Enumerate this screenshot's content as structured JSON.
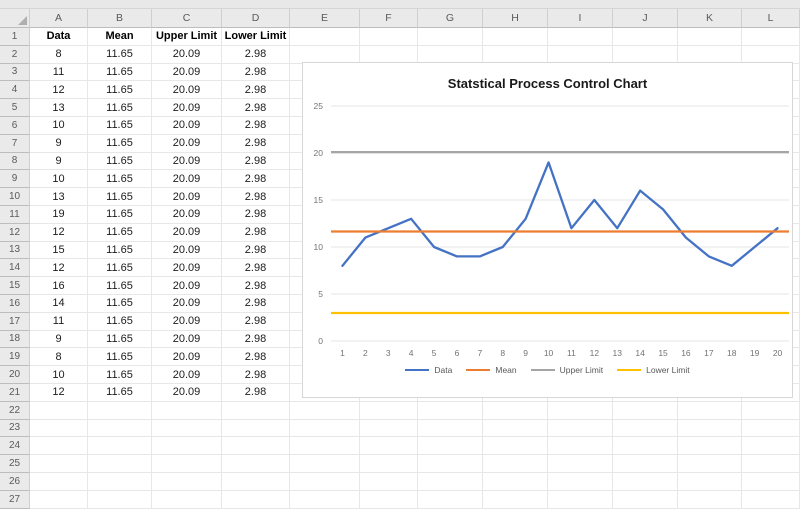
{
  "sheet": {
    "column_headers": [
      "A",
      "B",
      "C",
      "D",
      "E",
      "F",
      "G",
      "H",
      "I",
      "J",
      "K",
      "L"
    ],
    "visible_rows": 27,
    "table": {
      "headers": [
        "Data",
        "Mean",
        "Upper Limit",
        "Lower Limit"
      ],
      "rows": [
        [
          "8",
          "11.65",
          "20.09",
          "2.98"
        ],
        [
          "11",
          "11.65",
          "20.09",
          "2.98"
        ],
        [
          "12",
          "11.65",
          "20.09",
          "2.98"
        ],
        [
          "13",
          "11.65",
          "20.09",
          "2.98"
        ],
        [
          "10",
          "11.65",
          "20.09",
          "2.98"
        ],
        [
          "9",
          "11.65",
          "20.09",
          "2.98"
        ],
        [
          "9",
          "11.65",
          "20.09",
          "2.98"
        ],
        [
          "10",
          "11.65",
          "20.09",
          "2.98"
        ],
        [
          "13",
          "11.65",
          "20.09",
          "2.98"
        ],
        [
          "19",
          "11.65",
          "20.09",
          "2.98"
        ],
        [
          "12",
          "11.65",
          "20.09",
          "2.98"
        ],
        [
          "15",
          "11.65",
          "20.09",
          "2.98"
        ],
        [
          "12",
          "11.65",
          "20.09",
          "2.98"
        ],
        [
          "16",
          "11.65",
          "20.09",
          "2.98"
        ],
        [
          "14",
          "11.65",
          "20.09",
          "2.98"
        ],
        [
          "11",
          "11.65",
          "20.09",
          "2.98"
        ],
        [
          "9",
          "11.65",
          "20.09",
          "2.98"
        ],
        [
          "8",
          "11.65",
          "20.09",
          "2.98"
        ],
        [
          "10",
          "11.65",
          "20.09",
          "2.98"
        ],
        [
          "12",
          "11.65",
          "20.09",
          "2.98"
        ]
      ]
    }
  },
  "chart_data": {
    "type": "line",
    "title": "Statstical Process Control Chart",
    "x": [
      1,
      2,
      3,
      4,
      5,
      6,
      7,
      8,
      9,
      10,
      11,
      12,
      13,
      14,
      15,
      16,
      17,
      18,
      19,
      20
    ],
    "series": [
      {
        "name": "Data",
        "color": "#4472C4",
        "values": [
          8,
          11,
          12,
          13,
          10,
          9,
          9,
          10,
          13,
          19,
          12,
          15,
          12,
          16,
          14,
          11,
          9,
          8,
          10,
          12
        ]
      },
      {
        "name": "Mean",
        "color": "#ED7D31",
        "constant": 11.65
      },
      {
        "name": "Upper Limit",
        "color": "#A5A5A5",
        "constant": 20.09
      },
      {
        "name": "Lower Limit",
        "color": "#FFC000",
        "constant": 2.98
      }
    ],
    "ylim": [
      0,
      25
    ],
    "yticks": [
      0,
      5,
      10,
      15,
      20,
      25
    ],
    "grid": true,
    "legend_position": "bottom"
  },
  "colors": {
    "grid_line": "#E6E6E6",
    "axis_text": "#737373",
    "header_bg": "#EAEAEA",
    "chart_border": "#D7D7D7"
  }
}
